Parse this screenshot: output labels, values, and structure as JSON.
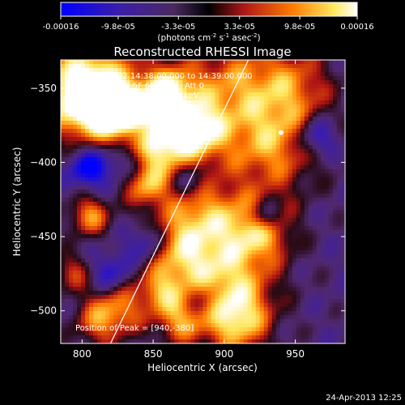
{
  "colorbar": {
    "ticks": [
      "-0.00016",
      "-9.8e-05",
      "-3.3e-05",
      "3.3e-05",
      "9.8e-05",
      "0.00016"
    ],
    "tick_values": [
      -0.00016,
      -9.8e-05,
      -3.3e-05,
      3.3e-05,
      9.8e-05,
      0.00016
    ],
    "range": [
      -0.00016,
      0.00016
    ],
    "unit_label": "(photons cm",
    "unit_sup1": "-2",
    "unit_mid": " s",
    "unit_sup2": "-1",
    "unit_mid2": " asec",
    "unit_sup3": "-2",
    "unit_end": ")",
    "colors": [
      "#0000ff",
      "#3b1aa0",
      "#5a2a6a",
      "#000000",
      "#c81e1e",
      "#ff8c00",
      "#ffff80",
      "#ffffff"
    ]
  },
  "chart_data": {
    "type": "heatmap",
    "title": "Reconstructed RHESSI Image",
    "xlabel": "Heliocentric X (arcsec)",
    "ylabel": "Heliocentric Y (arcsec)",
    "xlim": [
      785,
      985
    ],
    "ylim": [
      -522,
      -331
    ],
    "xticks": [
      800,
      850,
      900,
      950
    ],
    "yticks": [
      -500,
      -450,
      -400,
      -350
    ],
    "xtick_labels": [
      "800",
      "850",
      "900",
      "950"
    ],
    "ytick_labels": [
      "-500",
      "-450",
      "-400",
      "-350"
    ],
    "limb_line": [
      [
        820,
        -522
      ],
      [
        917,
        -331
      ]
    ],
    "peak": [
      940,
      -380
    ],
    "annotations": [
      "28-Dec-2002 14:38:00.000 to 14:39:00.000",
      "Detectors: 4F 5F 6F 7F 8F, Att 0",
      "Energy Range: 25.0 - 50.0 keV",
      "Clean    Total counts: 663."
    ],
    "peak_label": "Position of Peak = [940,-380]"
  },
  "timestamp": "24-Apr-2013 12:25"
}
